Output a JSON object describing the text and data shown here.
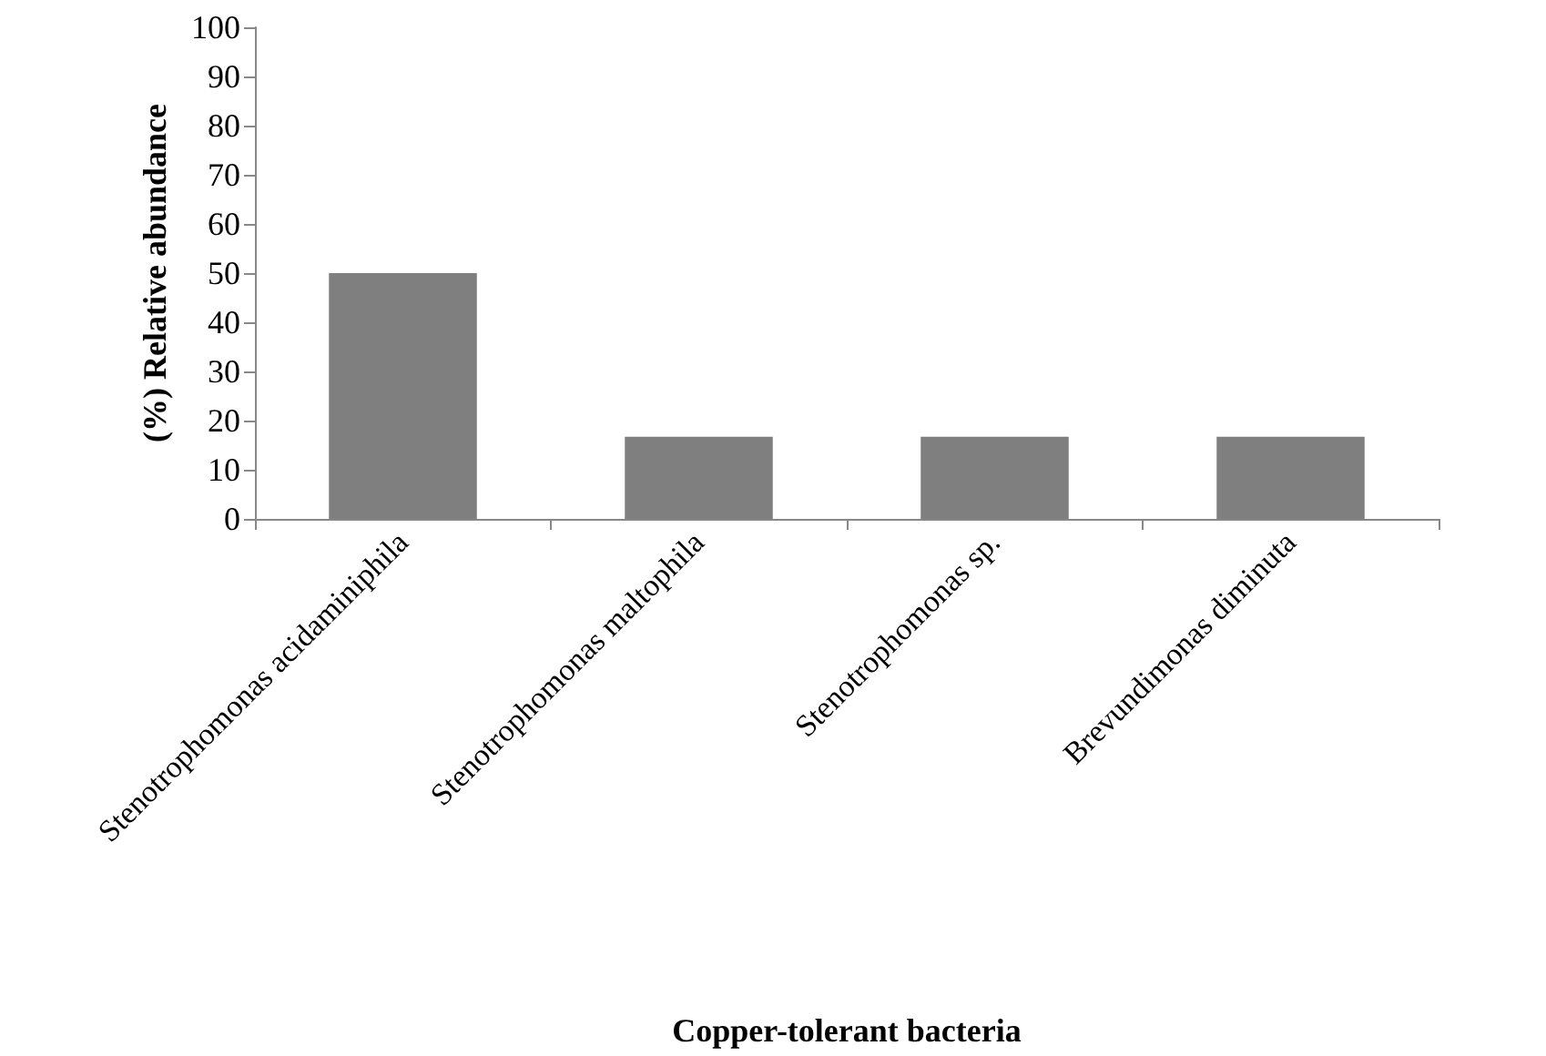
{
  "chart_data": {
    "type": "bar",
    "xlabel": "Copper-tolerant bacteria",
    "ylabel": "(%) Relative abundance",
    "categories": [
      "Stenotrophomonas acidaminiphila",
      "Stenotrophomonas maltophila",
      "Stenotrophomonas sp.",
      "Brevundimonas diminuta"
    ],
    "values": [
      50,
      16.7,
      16.7,
      16.7
    ],
    "color": "#7f7f7f",
    "ylim": [
      0,
      100
    ],
    "yticks": [
      0,
      10,
      20,
      30,
      40,
      50,
      60,
      70,
      80,
      90,
      100
    ],
    "grid": false
  }
}
